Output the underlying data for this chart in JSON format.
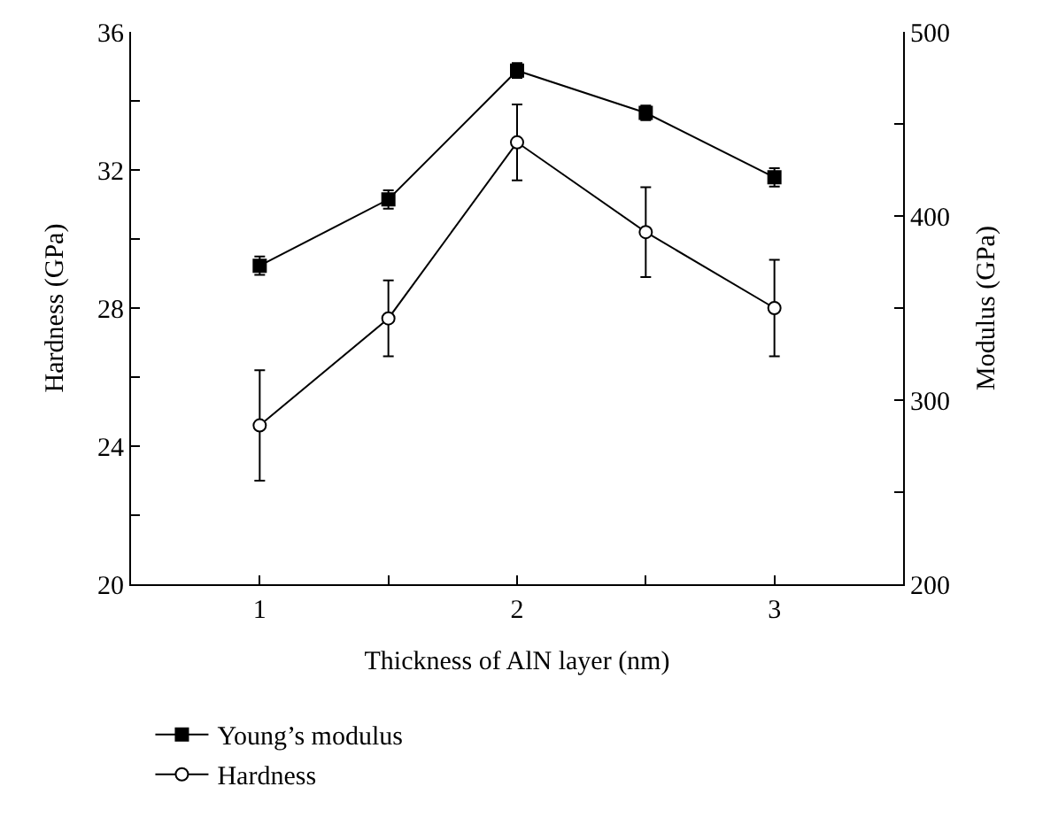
{
  "chart_data": {
    "type": "line",
    "xlabel": "Thickness of AlN layer (nm)",
    "ylabel": "Hardness (GPa)",
    "y2label": "Modulus (GPa)",
    "x": [
      1,
      1.5,
      2,
      2.5,
      3
    ],
    "xlim": [
      0.5,
      3.5
    ],
    "xticks": [
      1,
      {
        "value": 1.5,
        "label": null
      },
      2,
      {
        "value": 2.5,
        "label": null
      },
      3
    ],
    "ylim": [
      20,
      36
    ],
    "yticks": [
      20,
      {
        "value": 22,
        "label": null
      },
      24,
      {
        "value": 26,
        "label": null
      },
      28,
      {
        "value": 30,
        "label": null
      },
      32,
      {
        "value": 34,
        "label": null
      },
      36
    ],
    "y2lim": [
      200,
      500
    ],
    "y2ticks": [
      200,
      {
        "value": 250,
        "label": null
      },
      300,
      {
        "value": 350,
        "label": null
      },
      400,
      {
        "value": 450,
        "label": null
      },
      500
    ],
    "series": [
      {
        "name": "Young’s modulus",
        "color": "#000000",
        "axis": "y2",
        "marker": "square",
        "values": [
          373,
          409,
          479,
          456,
          421
        ],
        "errors": [
          5,
          5,
          4,
          4,
          5
        ]
      },
      {
        "name": "Hardness",
        "color": "#000000",
        "marker": "circle",
        "values": [
          24.6,
          27.7,
          32.8,
          30.2,
          28.0
        ],
        "errors": [
          1.6,
          1.1,
          1.1,
          1.3,
          1.4
        ]
      }
    ],
    "legend": "bottom left",
    "line_style": "solid"
  }
}
